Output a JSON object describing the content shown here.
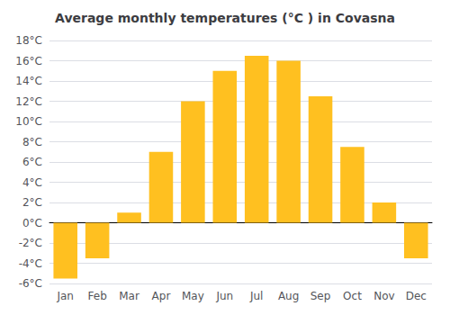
{
  "chart_data": {
    "type": "bar",
    "title": "Average monthly temperatures (°C ) in Covasna",
    "categories": [
      "Jan",
      "Feb",
      "Mar",
      "Apr",
      "May",
      "Jun",
      "Jul",
      "Aug",
      "Sep",
      "Oct",
      "Nov",
      "Dec"
    ],
    "values": [
      -5.5,
      -3.5,
      1.0,
      7.0,
      12.0,
      15.0,
      16.5,
      16.0,
      12.5,
      7.5,
      2.0,
      -3.5
    ],
    "color": "#FFC020",
    "ylim": [
      -6,
      18
    ],
    "yticks": [
      {
        "value": -6,
        "label": "-6°C"
      },
      {
        "value": -4,
        "label": "-4°C"
      },
      {
        "value": -2,
        "label": "-2°C"
      },
      {
        "value": 0,
        "label": "0°C"
      },
      {
        "value": 2,
        "label": "2°C"
      },
      {
        "value": 4,
        "label": "4°C"
      },
      {
        "value": 6,
        "label": "6°C"
      },
      {
        "value": 8,
        "label": "8°C"
      },
      {
        "value": 10,
        "label": "10°C"
      },
      {
        "value": 12,
        "label": "12°C"
      },
      {
        "value": 14,
        "label": "14°C"
      },
      {
        "value": 16,
        "label": "16°C"
      },
      {
        "value": 18,
        "label": "18°C"
      }
    ],
    "grid": true
  }
}
